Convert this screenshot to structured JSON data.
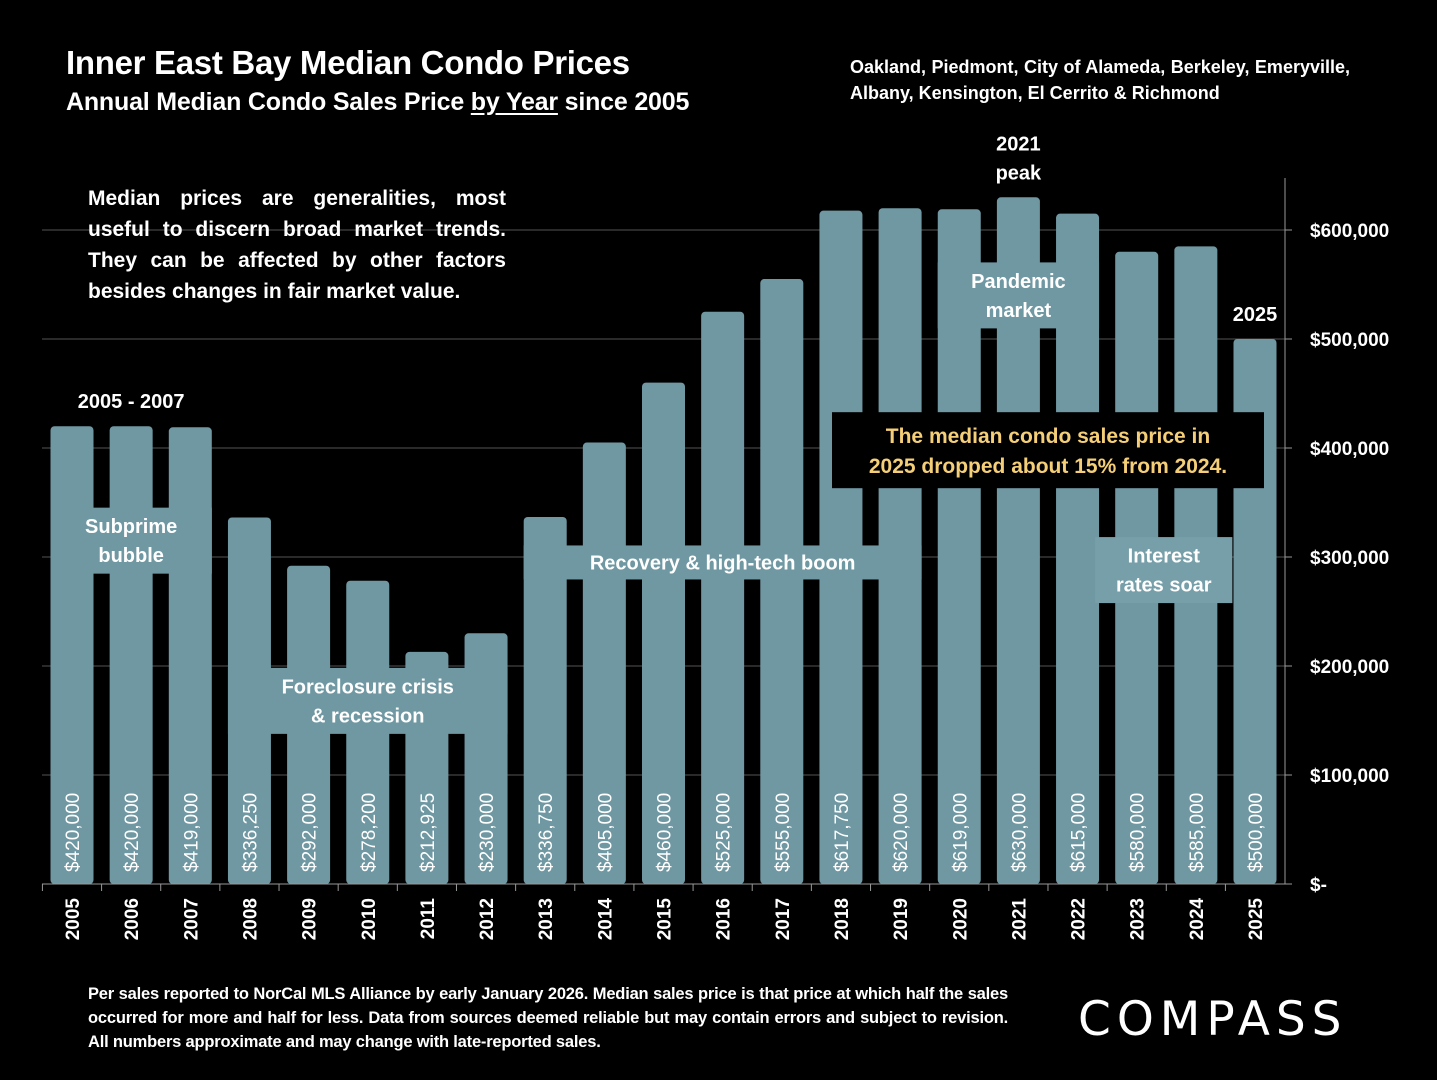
{
  "header": {
    "title": "Inner East Bay Median Condo Prices",
    "subtitle_pre": "Annual Median Condo Sales Price ",
    "subtitle_underlined": "by Year",
    "subtitle_post": " since 2005",
    "region": "Oakland, Piedmont, City of Alameda, Berkeley, Emeryville, Albany, Kensington, El Cerrito & Richmond"
  },
  "note": "Median prices are generalities, most useful to discern broad market trends. They can be affected by other factors besides changes in fair market value.",
  "footer": "Per sales reported to NorCal MLS Alliance by early January 2026. Median sales price is that price at which half the sales occurred for more and half for less. Data from sources deemed reliable but may contain errors and subject to revision. All numbers approximate and may change with late-reported sales.",
  "logo": "COMPASS",
  "colors": {
    "bar": "#6F98A3",
    "background": "#000000",
    "callout_text": "#F5CF78",
    "grid": "#555555"
  },
  "chart_data": {
    "type": "bar",
    "title": "Inner East Bay Median Condo Prices",
    "subtitle": "Annual Median Condo Sales Price by Year since 2005",
    "xlabel": "",
    "ylabel": "",
    "ylim": [
      0,
      650000
    ],
    "y_axis_position": "right",
    "grid": true,
    "yticks": [
      0,
      100000,
      200000,
      300000,
      400000,
      500000,
      600000
    ],
    "ytick_labels": [
      "$-",
      "$100,000",
      "$200,000",
      "$300,000",
      "$400,000",
      "$500,000",
      "$600,000"
    ],
    "categories": [
      "2005",
      "2006",
      "2007",
      "2008",
      "2009",
      "2010",
      "2011",
      "2012",
      "2013",
      "2014",
      "2015",
      "2016",
      "2017",
      "2018",
      "2019",
      "2020",
      "2021",
      "2022",
      "2023",
      "2024",
      "2025"
    ],
    "values": [
      420000,
      420000,
      419000,
      336250,
      292000,
      278200,
      212925,
      230000,
      336750,
      405000,
      460000,
      525000,
      555000,
      617750,
      620000,
      619000,
      630000,
      615000,
      580000,
      585000,
      500000
    ],
    "data_labels": [
      "$420,000",
      "$420,000",
      "$419,000",
      "$336,250",
      "$292,000",
      "$278,200",
      "$212,925",
      "$230,000",
      "$336,750",
      "$405,000",
      "$460,000",
      "$525,000",
      "$555,000",
      "$617,750",
      "$620,000",
      "$619,000",
      "$630,000",
      "$615,000",
      "$580,000",
      "$585,000",
      "$500,000"
    ],
    "annotations": [
      {
        "text": "2005 - 2007",
        "kind": "top-label",
        "from": "2005",
        "to": "2007"
      },
      {
        "text": "Subprime\nbubble",
        "kind": "band",
        "from": "2005",
        "to": "2007",
        "y_center": 315000
      },
      {
        "text": "Foreclosure crisis\n& recession",
        "kind": "band",
        "from": "2008",
        "to": "2012",
        "y_center": 168000
      },
      {
        "text": "Recovery & high-tech boom",
        "kind": "band",
        "from": "2013",
        "to": "2019",
        "y_center": 295000
      },
      {
        "text": "2021\npeak",
        "kind": "top-label",
        "from": "2021",
        "to": "2021"
      },
      {
        "text": "Pandemic\nmarket",
        "kind": "band",
        "from": "2020",
        "to": "2022",
        "y_center": 540000
      },
      {
        "text": "Interest\nrates soar",
        "kind": "band",
        "from": "2023",
        "to": "2024",
        "y_center": 288000
      },
      {
        "text": "2025",
        "kind": "top-label",
        "from": "2025",
        "to": "2025"
      },
      {
        "text": "The median condo sales price in\n2025 dropped about 15% from 2024.",
        "kind": "callout",
        "from": "2018",
        "to": "2025",
        "y_center": 398000
      }
    ]
  }
}
